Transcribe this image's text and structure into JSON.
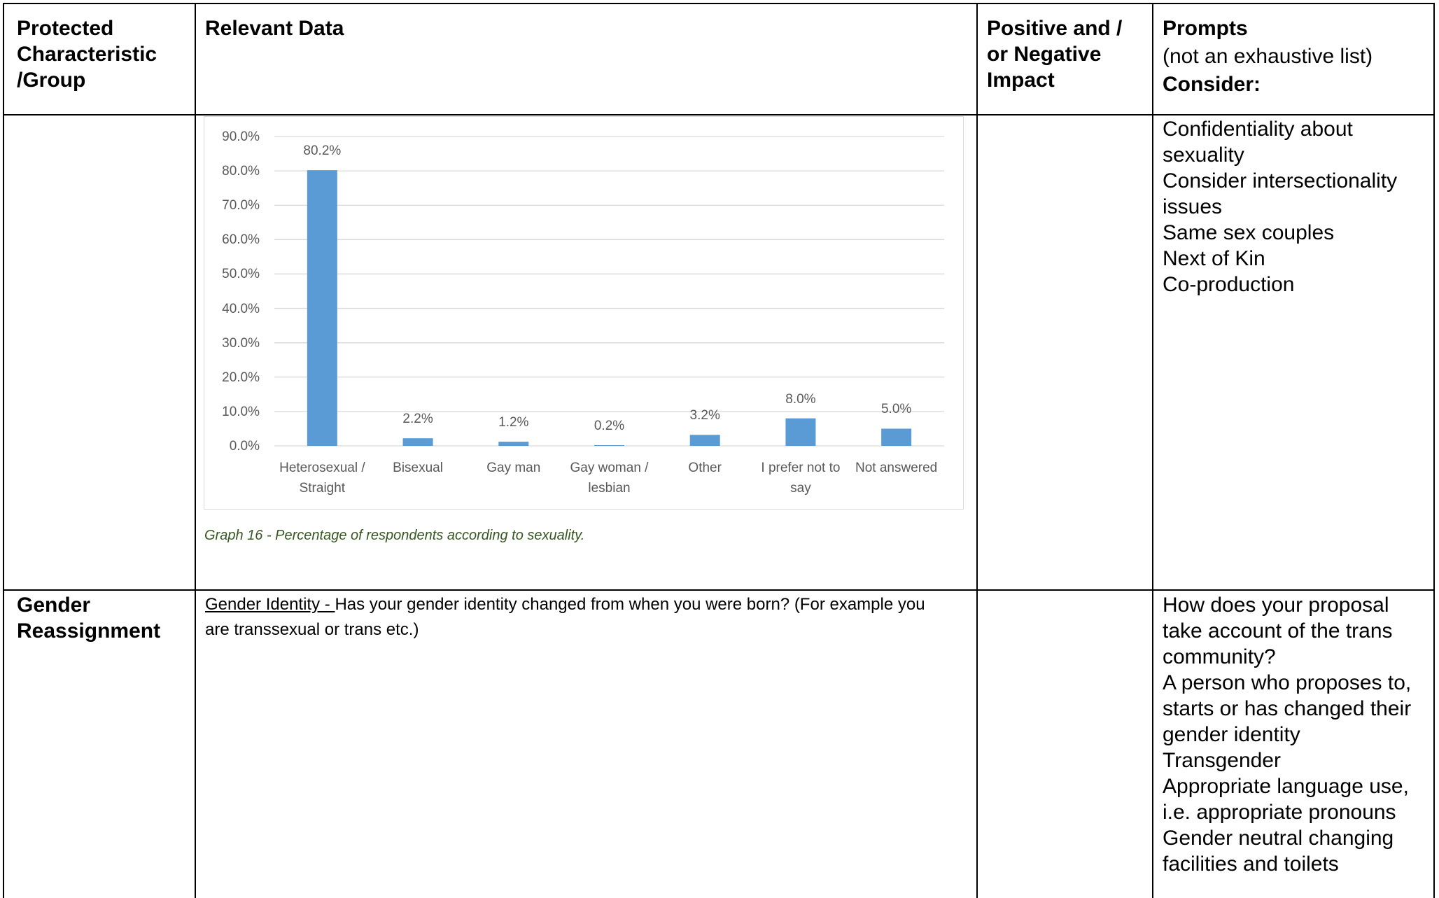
{
  "table": {
    "header": {
      "characteristic": "Protected Characteristic /Group",
      "data": "Relevant Data",
      "impact": "Positive and / or Negative Impact",
      "prompts": "Prompts",
      "prompts_note": "(not an exhaustive list)",
      "prompts_consider": "Consider:"
    },
    "rows": [
      {
        "caption": "Graph 16 - Percentage of respondents according to sexuality.",
        "prompts": [
          "Confidentiality about sexuality",
          "Consider intersectionality issues",
          "Same sex couples",
          "Next of Kin",
          "Co-production"
        ]
      },
      {
        "characteristic": "Gender Reassignment",
        "data_heading": "Gender Identity - ",
        "data_text": "Has your gender identity changed from when you were born? (For example you are transsexual or trans etc.)",
        "prompts": [
          "How does your proposal take account of the trans community?",
          "A person who proposes to, starts or has changed their gender identity",
          "Transgender",
          "Appropriate language use, i.e. appropriate pronouns",
          "Gender neutral changing facilities and toilets"
        ]
      }
    ]
  },
  "chart_data": {
    "type": "bar",
    "categories": [
      "Heterosexual / Straight",
      "Bisexual",
      "Gay man",
      "Gay woman / lesbian",
      "Other",
      "I prefer not to say",
      "Not answered"
    ],
    "values": [
      80.2,
      2.2,
      1.2,
      0.2,
      3.2,
      8.0,
      5.0
    ],
    "value_labels": [
      "80.2%",
      "2.2%",
      "1.2%",
      "0.2%",
      "3.2%",
      "8.0%",
      "5.0%"
    ],
    "color": "#5b9bd5",
    "ylim": [
      0,
      90
    ],
    "yticks": [
      {
        "value": 0,
        "label": "0.0%"
      },
      {
        "value": 10,
        "label": "10.0%"
      },
      {
        "value": 20,
        "label": "20.0%"
      },
      {
        "value": 30,
        "label": "30.0%"
      },
      {
        "value": 40,
        "label": "40.0%"
      },
      {
        "value": 50,
        "label": "50.0%"
      },
      {
        "value": 60,
        "label": "60.0%"
      },
      {
        "value": 70,
        "label": "70.0%"
      },
      {
        "value": 80,
        "label": "80.0%"
      },
      {
        "value": 90,
        "label": "90.0%"
      }
    ],
    "grid": true
  }
}
